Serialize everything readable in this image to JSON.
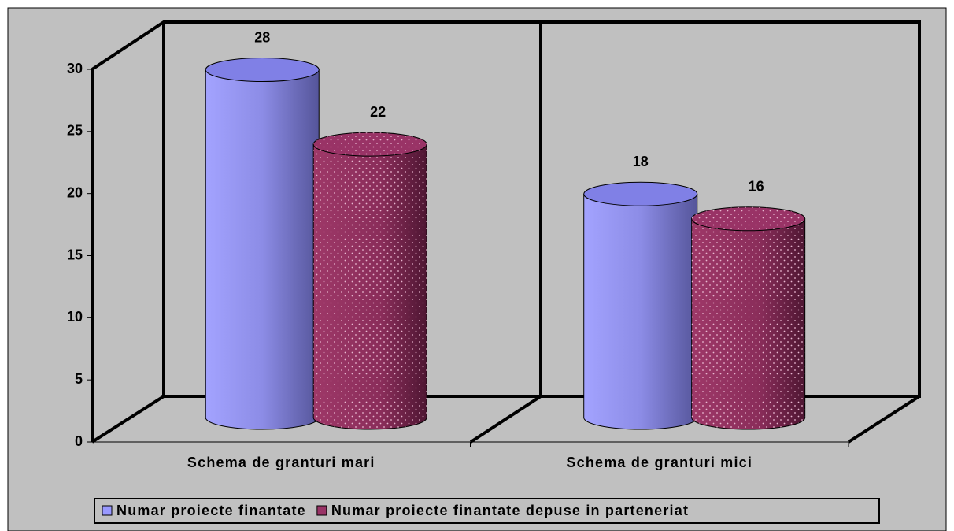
{
  "chart_data": {
    "type": "bar3d_cylinder",
    "categories": [
      "Schema de granturi mari",
      "Schema de granturi mici"
    ],
    "series": [
      {
        "name": "Numar proiecte finantate",
        "color": "#9999ff",
        "values": [
          28,
          18
        ]
      },
      {
        "name": "Numar proiecte finantate depuse in parteneriat",
        "color": "#993366",
        "values": [
          22,
          16
        ]
      }
    ],
    "ylim": [
      0,
      30
    ],
    "yticks": [
      0,
      5,
      10,
      15,
      20,
      25,
      30
    ],
    "grid": false,
    "legend": "bottom"
  }
}
